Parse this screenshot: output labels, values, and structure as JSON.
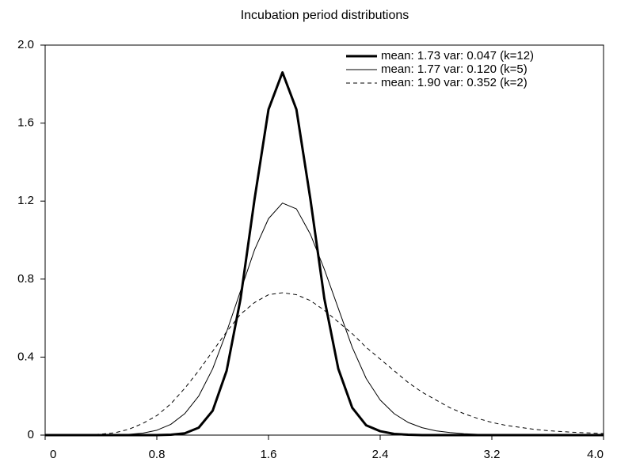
{
  "chart_data": {
    "type": "line",
    "title": "Incubation period distributions",
    "x": [
      0,
      0.1,
      0.2,
      0.3,
      0.4,
      0.5,
      0.6,
      0.7,
      0.8,
      0.9,
      1.0,
      1.1,
      1.2,
      1.3,
      1.4,
      1.5,
      1.6,
      1.7,
      1.8,
      1.9,
      2.0,
      2.1,
      2.2,
      2.3,
      2.4,
      2.5,
      2.6,
      2.7,
      2.8,
      2.9,
      3.0,
      3.1,
      3.2,
      3.3,
      3.4,
      3.5,
      3.6,
      3.7,
      3.8,
      3.9,
      4.0
    ],
    "series": [
      {
        "name": "mean: 1.73 var: 0.047 (k=12)",
        "color": "#000000",
        "linewidth": 3,
        "dashed": false,
        "values": [
          0,
          0,
          0,
          0,
          0,
          0,
          0,
          0,
          0,
          0.002,
          0.009,
          0.038,
          0.125,
          0.33,
          0.7,
          1.21,
          1.67,
          1.86,
          1.67,
          1.21,
          0.7,
          0.34,
          0.14,
          0.05,
          0.02,
          0.006,
          0.002,
          0,
          0,
          0,
          0,
          0,
          0,
          0,
          0,
          0,
          0,
          0,
          0,
          0,
          0
        ]
      },
      {
        "name": "mean: 1.77 var: 0.120 (k=5)",
        "color": "#000000",
        "linewidth": 1,
        "dashed": false,
        "values": [
          0,
          0,
          0,
          0,
          0,
          0,
          0.004,
          0.01,
          0.025,
          0.055,
          0.11,
          0.2,
          0.34,
          0.53,
          0.74,
          0.95,
          1.11,
          1.19,
          1.16,
          1.03,
          0.85,
          0.65,
          0.45,
          0.29,
          0.18,
          0.11,
          0.065,
          0.038,
          0.022,
          0.013,
          0.007,
          0.004,
          0.002,
          0,
          0,
          0,
          0,
          0,
          0,
          0,
          0
        ]
      },
      {
        "name": "mean: 1.90 var: 0.352 (k=2)",
        "color": "#000000",
        "linewidth": 1,
        "dashed": true,
        "values": [
          0,
          0,
          0,
          0.002,
          0.005,
          0.012,
          0.03,
          0.06,
          0.1,
          0.16,
          0.24,
          0.33,
          0.43,
          0.53,
          0.62,
          0.68,
          0.72,
          0.73,
          0.72,
          0.69,
          0.64,
          0.58,
          0.52,
          0.45,
          0.39,
          0.33,
          0.27,
          0.22,
          0.18,
          0.14,
          0.11,
          0.085,
          0.065,
          0.05,
          0.04,
          0.03,
          0.023,
          0.018,
          0.014,
          0.011,
          0.008
        ]
      }
    ],
    "xlim": [
      0,
      4
    ],
    "ylim": [
      0,
      2
    ],
    "xticks": [
      0,
      0.8,
      1.6,
      2.4,
      3.2,
      {
        "value": 4,
        "label": "4.0"
      }
    ],
    "yticks": [
      0,
      0.4,
      0.8,
      1.2,
      1.6,
      {
        "value": 2,
        "label": "2.0"
      }
    ],
    "legend": "upper right"
  }
}
